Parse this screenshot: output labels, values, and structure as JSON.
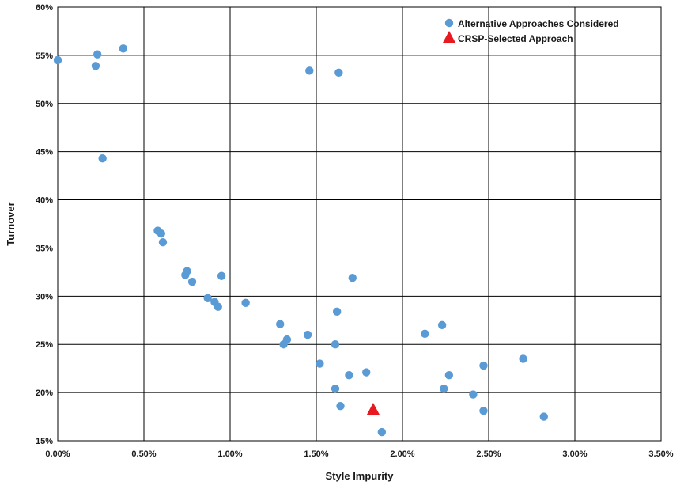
{
  "chart_data": {
    "type": "scatter",
    "xlabel": "Style Impurity",
    "ylabel": "Turnover",
    "xlim": [
      0,
      3.5
    ],
    "ylim": [
      15,
      60
    ],
    "x_unit": "%",
    "y_unit": "%",
    "x_ticks": [
      0,
      0.5,
      1,
      1.5,
      2,
      2.5,
      3,
      3.5
    ],
    "y_ticks": [
      15,
      20,
      25,
      30,
      35,
      40,
      45,
      50,
      55,
      60
    ],
    "x_tick_labels": [
      "0.00%",
      "0.50%",
      "1.00%",
      "1.50%",
      "2.00%",
      "2.50%",
      "3.00%",
      "3.50%"
    ],
    "y_tick_labels": [
      "15%",
      "20%",
      "25%",
      "30%",
      "35%",
      "40%",
      "45%",
      "50%",
      "55%",
      "60%"
    ],
    "grid": true,
    "legend_position": "top-right",
    "series": [
      {
        "name": "Alternative Approaches Considered",
        "marker": "circle",
        "color": "#5b9bd5",
        "points": [
          [
            0.0,
            54.5
          ],
          [
            0.22,
            53.9
          ],
          [
            0.23,
            55.1
          ],
          [
            0.38,
            55.7
          ],
          [
            0.26,
            44.3
          ],
          [
            1.46,
            53.4
          ],
          [
            1.63,
            53.2
          ],
          [
            0.58,
            36.8
          ],
          [
            0.6,
            36.5
          ],
          [
            0.61,
            35.6
          ],
          [
            0.74,
            32.2
          ],
          [
            0.75,
            32.6
          ],
          [
            0.78,
            31.5
          ],
          [
            0.95,
            32.1
          ],
          [
            0.87,
            29.8
          ],
          [
            0.91,
            29.4
          ],
          [
            0.93,
            28.9
          ],
          [
            1.09,
            29.3
          ],
          [
            1.71,
            31.9
          ],
          [
            1.62,
            28.4
          ],
          [
            1.29,
            27.1
          ],
          [
            1.31,
            25.0
          ],
          [
            1.33,
            25.5
          ],
          [
            1.45,
            26.0
          ],
          [
            1.61,
            25.0
          ],
          [
            1.52,
            23.0
          ],
          [
            1.69,
            21.8
          ],
          [
            1.79,
            22.1
          ],
          [
            1.61,
            20.4
          ],
          [
            1.64,
            18.6
          ],
          [
            1.88,
            15.9
          ],
          [
            2.13,
            26.1
          ],
          [
            2.23,
            27.0
          ],
          [
            2.47,
            22.8
          ],
          [
            2.7,
            23.5
          ],
          [
            2.27,
            21.8
          ],
          [
            2.24,
            20.4
          ],
          [
            2.41,
            19.8
          ],
          [
            2.47,
            18.1
          ],
          [
            2.82,
            17.5
          ]
        ]
      },
      {
        "name": "CRSP-Selected Approach",
        "marker": "triangle",
        "color": "#e8191f",
        "points": [
          [
            1.83,
            18.2
          ]
        ]
      }
    ]
  }
}
